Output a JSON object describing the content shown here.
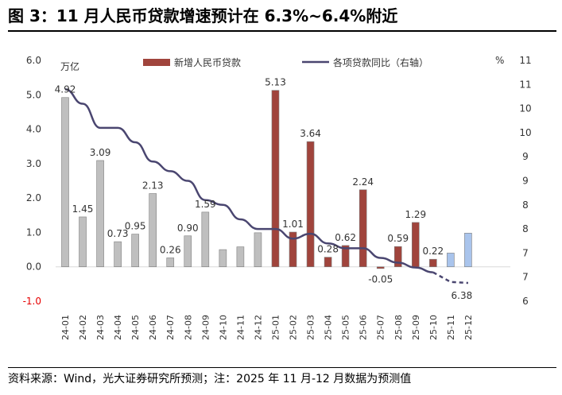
{
  "title": "图 3：11 月人民币贷款增速预计在 6.3%~6.4%附近",
  "source": "资料来源：Wind，光大证券研究所预测；注：2025 年 11 月-12 月数据为预测值",
  "chart_data": {
    "type": "bar",
    "categories": [
      "24-01",
      "24-02",
      "24-03",
      "24-04",
      "24-05",
      "24-06",
      "24-07",
      "24-08",
      "24-09",
      "24-10",
      "24-11",
      "24-12",
      "25-01",
      "25-02",
      "25-03",
      "25-04",
      "25-05",
      "25-06",
      "25-07",
      "25-08",
      "25-09",
      "25-10",
      "25-11",
      "25-12"
    ],
    "series": [
      {
        "name": "新增人民币贷款",
        "type": "bar",
        "axis": "left",
        "values": [
          4.92,
          1.45,
          3.09,
          0.73,
          0.95,
          2.13,
          0.26,
          0.9,
          1.59,
          0.5,
          0.58,
          0.99,
          5.13,
          1.01,
          3.64,
          0.28,
          0.62,
          2.24,
          -0.05,
          0.59,
          1.29,
          0.22,
          0.4,
          0.98
        ],
        "data_labels": [
          "4.92",
          "1.45",
          "3.09",
          "0.73",
          "0.95",
          "2.13",
          "0.26",
          "0.90",
          "1.59",
          "",
          "",
          "",
          "5.13",
          "1.01",
          "3.64",
          "0.28",
          "0.62",
          "2.24",
          "-0.05",
          "0.59",
          "1.29",
          "0.22",
          "",
          ""
        ],
        "colors": [
          "#bfbfbf",
          "#bfbfbf",
          "#bfbfbf",
          "#bfbfbf",
          "#bfbfbf",
          "#bfbfbf",
          "#bfbfbf",
          "#bfbfbf",
          "#bfbfbf",
          "#bfbfbf",
          "#bfbfbf",
          "#bfbfbf",
          "#a0443c",
          "#a0443c",
          "#a0443c",
          "#a0443c",
          "#a0443c",
          "#a0443c",
          "#a0443c",
          "#a0443c",
          "#a0443c",
          "#a0443c",
          "#a9c4ec",
          "#a9c4ec"
        ]
      },
      {
        "name": "各项贷款同比（右轴）",
        "type": "line",
        "axis": "right",
        "color": "#4a4670",
        "values": [
          10.4,
          10.1,
          9.6,
          9.6,
          9.3,
          8.9,
          8.7,
          8.5,
          8.1,
          8.0,
          7.7,
          7.5,
          7.5,
          7.3,
          7.4,
          7.2,
          7.1,
          7.1,
          6.9,
          6.8,
          6.7,
          6.6,
          6.4,
          6.38
        ],
        "dashed_from_index": 21,
        "end_label": "6.38"
      }
    ],
    "left_axis": {
      "unit": "万亿",
      "ylim": [
        -1.0,
        6.0
      ],
      "ticks": [
        "6.0",
        "5.0",
        "4.0",
        "3.0",
        "2.0",
        "1.0",
        "0.0",
        "-1.0"
      ],
      "negative_tick_color": "#e60000"
    },
    "right_axis": {
      "unit": "%",
      "ylim": [
        6,
        11
      ],
      "ticks": [
        "11",
        "11",
        "10",
        "10",
        "9",
        "9",
        "8",
        "8",
        "7",
        "7",
        "6"
      ]
    },
    "legend": {
      "position": "top"
    }
  }
}
